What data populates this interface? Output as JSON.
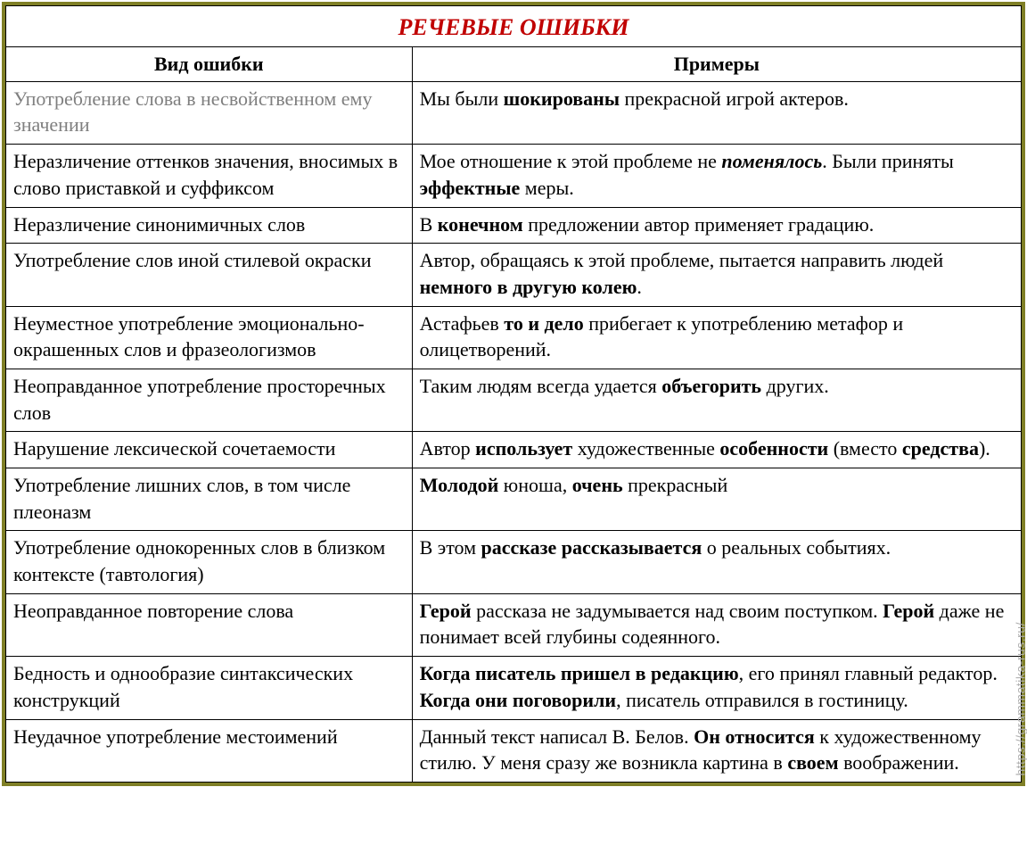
{
  "title": "РЕЧЕВЫЕ ОШИБКИ",
  "headers": {
    "left": "Вид ошибки",
    "right": "Примеры"
  },
  "watermark": "https://grammatika-rus.ru/",
  "colors": {
    "border": "#7f7f26",
    "title": "#c00000",
    "text": "#000000",
    "gray": "#7f7f7f",
    "watermark": "#b0b0b0",
    "background": "#ffffff"
  },
  "typography": {
    "font_family": "Times New Roman",
    "title_fontsize": 26,
    "header_fontsize": 22,
    "body_fontsize": 22
  },
  "rows": [
    {
      "left_gray": true,
      "left_parts": [
        {
          "t": "Употребление слова в несвойственном ему значении",
          "b": false
        }
      ],
      "right_parts": [
        {
          "t": "Мы были ",
          "b": false
        },
        {
          "t": "шокированы",
          "b": true
        },
        {
          "t": " прекрасной игрой актеров.",
          "b": false
        }
      ]
    },
    {
      "left_parts": [
        {
          "t": "Неразличение оттенков значения, вносимых в слово приставкой и суффиксом",
          "b": false
        }
      ],
      "right_parts": [
        {
          "t": "Мое отношение к этой проблеме не ",
          "b": false
        },
        {
          "t": "поменялось",
          "b": true,
          "i": true
        },
        {
          "t": ". Были приняты ",
          "b": false
        },
        {
          "t": "эффектные",
          "b": true
        },
        {
          "t": " меры.",
          "b": false
        }
      ]
    },
    {
      "left_parts": [
        {
          "t": "Неразличение синонимичных слов",
          "b": false
        }
      ],
      "right_parts": [
        {
          "t": "В ",
          "b": false
        },
        {
          "t": "конечном",
          "b": true
        },
        {
          "t": " предложении автор применяет градацию.",
          "b": false
        }
      ]
    },
    {
      "left_parts": [
        {
          "t": "Употребление слов иной стилевой окраски",
          "b": false
        }
      ],
      "right_parts": [
        {
          "t": "Автор, обращаясь к этой проблеме, пытается направить людей ",
          "b": false
        },
        {
          "t": "немного в другую колею",
          "b": true
        },
        {
          "t": ".",
          "b": false
        }
      ]
    },
    {
      "left_parts": [
        {
          "t": "Неуместное употребление эмоционально-окрашенных слов и фразеологизмов",
          "b": false
        }
      ],
      "right_parts": [
        {
          "t": "Астафьев ",
          "b": false
        },
        {
          "t": "то и дело",
          "b": true
        },
        {
          "t": " прибегает к употреблению метафор и олицетворений.",
          "b": false
        }
      ]
    },
    {
      "left_parts": [
        {
          "t": "Неоправданное употребление просторечных слов",
          "b": false
        }
      ],
      "right_parts": [
        {
          "t": "Таким людям всегда удается ",
          "b": false
        },
        {
          "t": "объегорить",
          "b": true
        },
        {
          "t": " других.",
          "b": false
        }
      ]
    },
    {
      "left_parts": [
        {
          "t": "Нарушение лексической сочетаемости",
          "b": false
        }
      ],
      "right_parts": [
        {
          "t": "Автор ",
          "b": false
        },
        {
          "t": "использует",
          "b": true
        },
        {
          "t": " художественные ",
          "b": false
        },
        {
          "t": "особенности",
          "b": true
        },
        {
          "t": " (вместо ",
          "b": false
        },
        {
          "t": "средства",
          "b": true
        },
        {
          "t": ").",
          "b": false
        }
      ]
    },
    {
      "left_parts": [
        {
          "t": "Употребление лишних слов, в том числе плеоназм",
          "b": false
        }
      ],
      "right_parts": [
        {
          "t": "Молодой",
          "b": true
        },
        {
          "t": " юноша, ",
          "b": false
        },
        {
          "t": "очень",
          "b": true
        },
        {
          "t": " прекрасный",
          "b": false
        }
      ]
    },
    {
      "left_parts": [
        {
          "t": "Употребление однокоренных слов в близком контексте (тавтология)",
          "b": false
        }
      ],
      "right_parts": [
        {
          "t": "В этом ",
          "b": false
        },
        {
          "t": "рассказе рассказывается",
          "b": true
        },
        {
          "t": " о реальных событиях.",
          "b": false
        }
      ]
    },
    {
      "left_parts": [
        {
          "t": "Неоправданное повторение слова",
          "b": false
        }
      ],
      "right_parts": [
        {
          "t": "Герой",
          "b": true
        },
        {
          "t": " рассказа не задумывается над своим поступком. ",
          "b": false
        },
        {
          "t": "Герой",
          "b": true
        },
        {
          "t": " даже не понимает всей глубины содеянного.",
          "b": false
        }
      ]
    },
    {
      "left_parts": [
        {
          "t": "Бедность и однообразие синтаксических конструкций",
          "b": false
        }
      ],
      "right_parts": [
        {
          "t": "Когда писатель пришел в редакцию",
          "b": true
        },
        {
          "t": ", его принял главный редактор. ",
          "b": false
        },
        {
          "t": "Когда они поговорили",
          "b": true
        },
        {
          "t": ", писатель отправился в гостиницу.",
          "b": false
        }
      ]
    },
    {
      "left_parts": [
        {
          "t": "Неудачное употребление местоимений",
          "b": false
        }
      ],
      "right_parts": [
        {
          "t": "Данный текст написал В. Белов. ",
          "b": false
        },
        {
          "t": "Он относится",
          "b": true
        },
        {
          "t": " к художественному стилю. У меня сразу же возникла картина в ",
          "b": false
        },
        {
          "t": "своем",
          "b": true
        },
        {
          "t": " воображении.",
          "b": false
        }
      ]
    }
  ]
}
